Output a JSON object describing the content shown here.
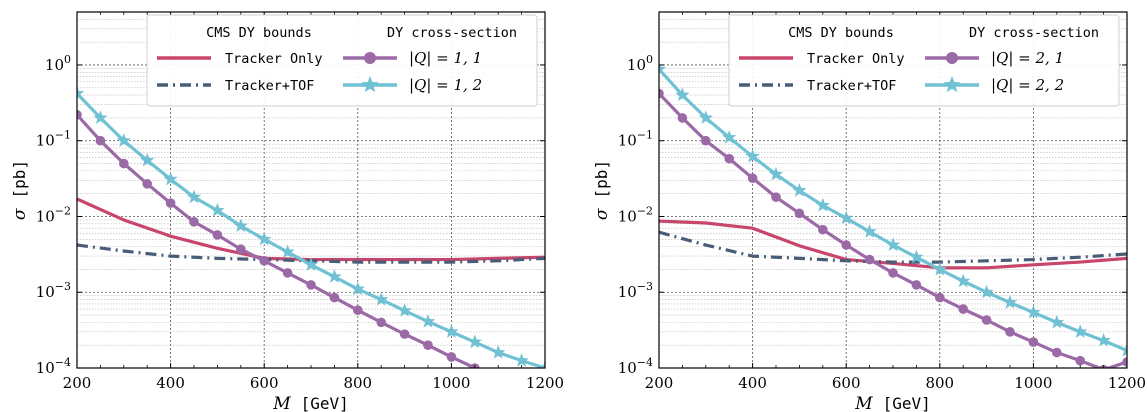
{
  "colors": {
    "tracker_only": "#c8456b",
    "tracker_tof": "#4a5d78",
    "q_a": "#9b6aa6",
    "q_b": "#6fc1d3"
  },
  "chart_data": [
    {
      "type": "line",
      "xlabel": "M  [GeV]",
      "ylabel": "σ  [pb]",
      "xlim": [
        200,
        1200
      ],
      "ylim": [
        0.0001,
        5
      ],
      "yscale": "log",
      "grid": true,
      "xticks": [
        "200",
        "400",
        "600",
        "800",
        "1000",
        "1200"
      ],
      "yticks": [
        {
          "value": 0.0001,
          "base": "10",
          "exp": "−4"
        },
        {
          "value": 0.001,
          "base": "10",
          "exp": "−3"
        },
        {
          "value": 0.01,
          "base": "10",
          "exp": "−2"
        },
        {
          "value": 0.1,
          "base": "10",
          "exp": "−1"
        },
        {
          "value": 1,
          "base": "10",
          "exp": "0"
        }
      ],
      "legend_placement": "top-right",
      "legend_headers": [
        "CMS DY bounds",
        "DY cross-section"
      ],
      "series": [
        {
          "name": "Tracker Only",
          "style": "solid",
          "x": [
            200,
            300,
            400,
            500,
            600,
            700,
            800,
            900,
            1000,
            1100,
            1200
          ],
          "y": [
            0.017,
            0.009,
            0.0055,
            0.0038,
            0.0028,
            0.0027,
            0.0027,
            0.0027,
            0.0027,
            0.0028,
            0.0029
          ]
        },
        {
          "name": "Tracker+TOF",
          "style": "dashdot",
          "x": [
            200,
            300,
            400,
            500,
            600,
            700,
            800,
            900,
            1000,
            1100,
            1200
          ],
          "y": [
            0.0042,
            0.0035,
            0.003,
            0.0028,
            0.0027,
            0.0026,
            0.0025,
            0.0025,
            0.0025,
            0.0026,
            0.0028
          ]
        },
        {
          "name": "|Q| = 1, 1",
          "style": "circle",
          "x": [
            200,
            250,
            300,
            350,
            400,
            450,
            500,
            550,
            600,
            650,
            700,
            750,
            800,
            850,
            900,
            950,
            1000,
            1050,
            1100
          ],
          "y": [
            0.22,
            0.1,
            0.05,
            0.027,
            0.015,
            0.0085,
            0.0057,
            0.0037,
            0.0026,
            0.0018,
            0.00125,
            0.00085,
            0.00058,
            0.0004,
            0.00028,
            0.0002,
            0.00014,
            0.0001,
            7e-05
          ]
        },
        {
          "name": "|Q| = 1, 2",
          "style": "star",
          "x": [
            200,
            250,
            300,
            350,
            400,
            450,
            500,
            550,
            600,
            650,
            700,
            750,
            800,
            850,
            900,
            950,
            1000,
            1050,
            1100,
            1150,
            1200
          ],
          "y": [
            0.42,
            0.2,
            0.1,
            0.055,
            0.031,
            0.018,
            0.012,
            0.0075,
            0.005,
            0.0034,
            0.0023,
            0.0016,
            0.0011,
            0.0008,
            0.00057,
            0.00041,
            0.0003,
            0.00022,
            0.00016,
            0.000125,
            0.0001
          ]
        }
      ]
    },
    {
      "type": "line",
      "xlabel": "M  [GeV]",
      "ylabel": "σ  [pb]",
      "xlim": [
        200,
        1200
      ],
      "ylim": [
        0.0001,
        5
      ],
      "yscale": "log",
      "grid": true,
      "xticks": [
        "200",
        "400",
        "600",
        "800",
        "1000",
        "1200"
      ],
      "yticks": [
        {
          "value": 0.0001,
          "base": "10",
          "exp": "−4"
        },
        {
          "value": 0.001,
          "base": "10",
          "exp": "−3"
        },
        {
          "value": 0.01,
          "base": "10",
          "exp": "−2"
        },
        {
          "value": 0.1,
          "base": "10",
          "exp": "−1"
        },
        {
          "value": 1,
          "base": "10",
          "exp": "0"
        }
      ],
      "legend_placement": "top-right",
      "legend_headers": [
        "CMS DY bounds",
        "DY cross-section"
      ],
      "series": [
        {
          "name": "Tracker Only",
          "style": "solid",
          "x": [
            200,
            300,
            400,
            500,
            600,
            700,
            800,
            900,
            1000,
            1100,
            1200
          ],
          "y": [
            0.0087,
            0.0082,
            0.007,
            0.0041,
            0.0027,
            0.0024,
            0.0021,
            0.0021,
            0.0023,
            0.0025,
            0.0028
          ]
        },
        {
          "name": "Tracker+TOF",
          "style": "dashdot",
          "x": [
            200,
            300,
            400,
            500,
            600,
            700,
            800,
            900,
            1000,
            1100,
            1200
          ],
          "y": [
            0.0062,
            0.0042,
            0.003,
            0.0028,
            0.0026,
            0.0025,
            0.0025,
            0.0026,
            0.0027,
            0.0029,
            0.0032
          ]
        },
        {
          "name": "|Q| = 2, 1",
          "style": "circle",
          "x": [
            200,
            250,
            300,
            350,
            400,
            450,
            500,
            550,
            600,
            650,
            700,
            750,
            800,
            850,
            900,
            950,
            1000,
            1050,
            1100,
            1150,
            1200
          ],
          "y": [
            0.42,
            0.2,
            0.1,
            0.058,
            0.032,
            0.018,
            0.011,
            0.0067,
            0.0042,
            0.0027,
            0.0018,
            0.00125,
            0.00085,
            0.0006,
            0.00043,
            0.0003,
            0.00022,
            0.00016,
            0.000125,
            9.5e-05,
            0.00012
          ]
        },
        {
          "name": "|Q| = 2, 2",
          "style": "star",
          "x": [
            200,
            250,
            300,
            350,
            400,
            450,
            500,
            550,
            600,
            650,
            700,
            750,
            800,
            850,
            900,
            950,
            1000,
            1050,
            1100,
            1150,
            1200
          ],
          "y": [
            0.88,
            0.4,
            0.2,
            0.11,
            0.062,
            0.036,
            0.022,
            0.014,
            0.0095,
            0.0063,
            0.0042,
            0.0029,
            0.002,
            0.0014,
            0.001,
            0.00073,
            0.00054,
            0.0004,
            0.0003,
            0.00023,
            0.00017
          ]
        }
      ]
    }
  ]
}
